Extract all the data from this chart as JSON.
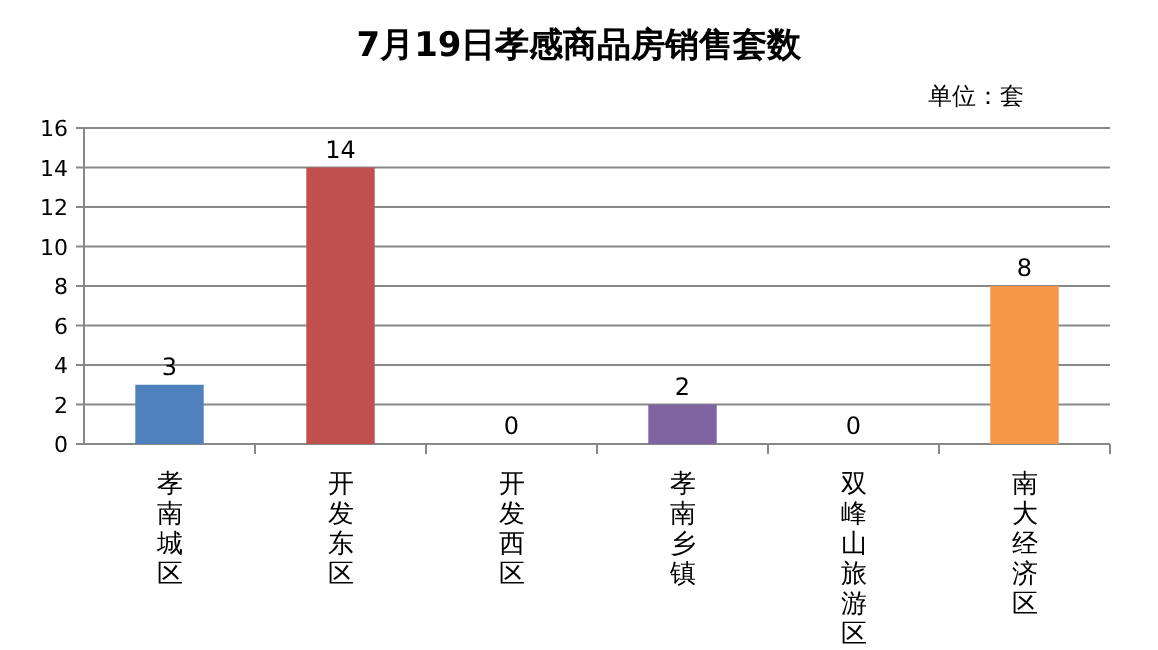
{
  "chart_data": {
    "type": "bar",
    "title": "7月19日孝感商品房销售套数",
    "annotations": [
      "单位：套"
    ],
    "categories": [
      "孝南城区",
      "开发东区",
      "开发西区",
      "孝南乡镇",
      "双峰山旅游区",
      "南大经济区"
    ],
    "values": [
      3,
      14,
      0,
      2,
      0,
      8
    ],
    "colors": [
      "#4f81bd",
      "#c0504d",
      "#9bbb59",
      "#8064a2",
      "#4bacc6",
      "#f79646"
    ],
    "ylim": [
      0,
      16
    ],
    "yticks": [
      0,
      2,
      4,
      6,
      8,
      10,
      12,
      14,
      16
    ],
    "grid": "y",
    "data_labels": true
  }
}
